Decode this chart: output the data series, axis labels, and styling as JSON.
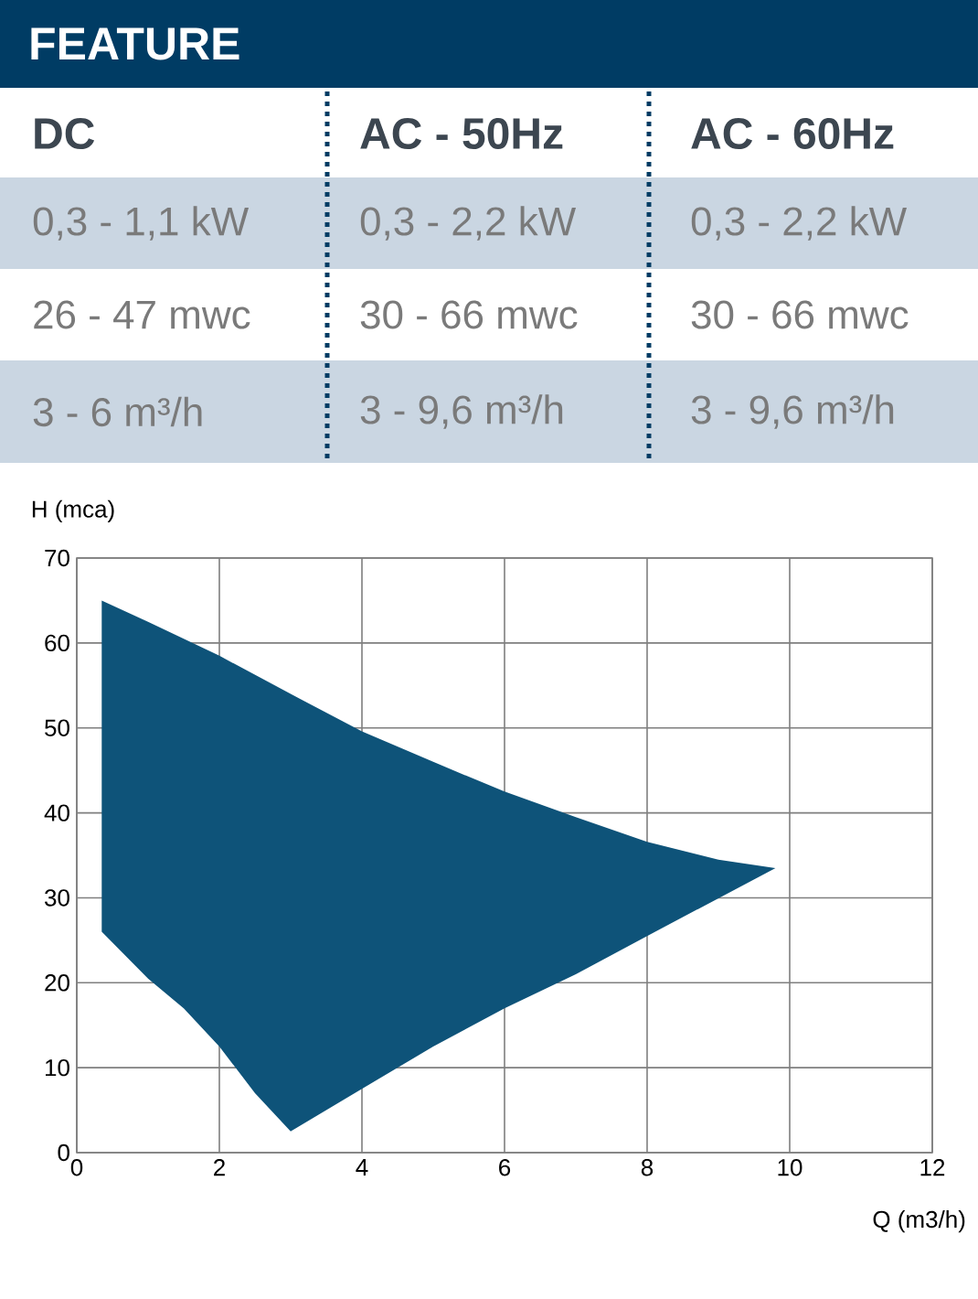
{
  "chart_data": [
    {
      "type": "other",
      "title": "FEATURE",
      "categories": [
        "DC",
        "AC - 50Hz",
        "AC - 60Hz"
      ],
      "annotations": [
        "0,3 - 1,1 kW",
        "0,3 - 2,2 kW",
        "0,3 - 2,2 kW",
        "26 - 47 mwc",
        "30 - 66 mwc",
        "30 - 66 mwc",
        "3 - 6  m³/h",
        "3 - 9,6 m³/h",
        "3 - 9,6 m³/h"
      ]
    },
    {
      "type": "area",
      "xlabel": "Q (m3/h)",
      "ylabel": "H (mca)",
      "xlim": [
        0,
        12
      ],
      "ylim": [
        0,
        70
      ],
      "xticks": [
        0,
        2,
        4,
        6,
        8,
        10,
        12
      ],
      "yticks": [
        0,
        10,
        20,
        30,
        40,
        50,
        60,
        70
      ],
      "grid": true,
      "color": "#0e5379",
      "x": [
        0.35,
        1,
        2,
        3,
        4,
        5,
        6,
        7,
        8,
        9,
        9.8,
        8,
        7,
        6,
        5,
        4,
        3,
        2.5,
        2,
        1.5,
        1,
        0.35
      ],
      "values": [
        65,
        62.5,
        58.5,
        54,
        49.6,
        46,
        42.5,
        39.5,
        36.6,
        34.5,
        33.5,
        25.5,
        21,
        17,
        12.5,
        7.5,
        2.5,
        7,
        12.5,
        17,
        20.5,
        26
      ]
    }
  ]
}
